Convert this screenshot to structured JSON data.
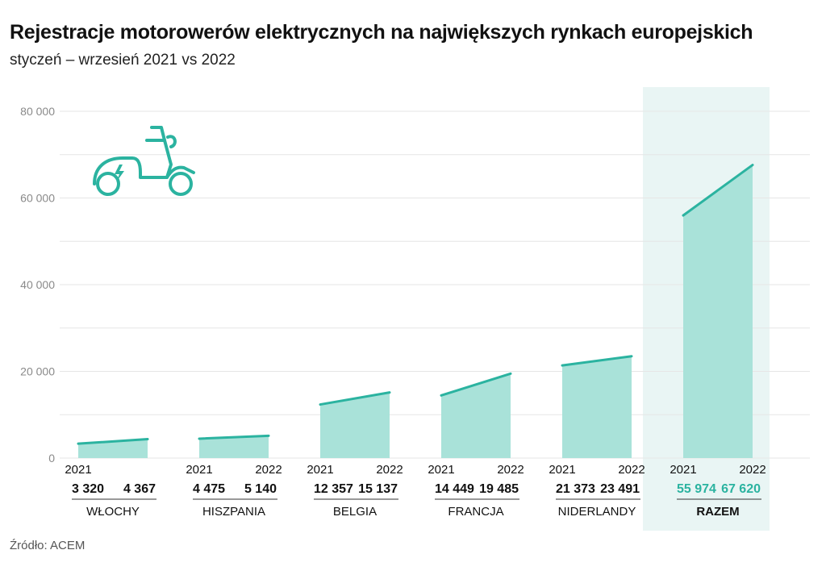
{
  "header": {
    "title": "Rejestracje motorowerów elektrycznych na największych rynkach europejskich",
    "subtitle": "styczeń – wrzesień 2021 vs 2022"
  },
  "footer": {
    "source": "Źródło: ACEM"
  },
  "colors": {
    "fill": "#a9e2d9",
    "line": "#2bb3a0",
    "highlight_bg": "#e9f5f4",
    "grid": "#e6e6e6",
    "highlight_text": "#2bb3a0"
  },
  "icon": {
    "name": "electric-scooter-icon"
  },
  "chart_data": {
    "type": "area",
    "title": "Rejestracje motorowerów elektrycznych na największych rynkach europejskich",
    "subtitle": "styczeń – wrzesień 2021 vs 2022",
    "ylim": [
      0,
      80000
    ],
    "yticks": [
      0,
      20000,
      40000,
      60000,
      80000
    ],
    "ytick_labels": [
      "0",
      "20 000",
      "40 000",
      "60 000",
      "80 000"
    ],
    "grid": true,
    "years": [
      "2021",
      "2022"
    ],
    "groups": [
      {
        "name": "WŁOCHY",
        "values": [
          3320,
          4367
        ],
        "labels": [
          "3 320",
          "4 367"
        ],
        "year_labels": [
          "2021",
          ""
        ],
        "highlight": false
      },
      {
        "name": "HISZPANIA",
        "values": [
          4475,
          5140
        ],
        "labels": [
          "4 475",
          "5 140"
        ],
        "year_labels": [
          "2021",
          "2022"
        ],
        "highlight": false
      },
      {
        "name": "BELGIA",
        "values": [
          12357,
          15137
        ],
        "labels": [
          "12 357",
          "15 137"
        ],
        "year_labels": [
          "2021",
          "2022"
        ],
        "highlight": false
      },
      {
        "name": "FRANCJA",
        "values": [
          14449,
          19485
        ],
        "labels": [
          "14 449",
          "19 485"
        ],
        "year_labels": [
          "2021",
          "2022"
        ],
        "highlight": false
      },
      {
        "name": "NIDERLANDY",
        "values": [
          21373,
          23491
        ],
        "labels": [
          "21 373",
          "23 491"
        ],
        "year_labels": [
          "2021",
          "2022"
        ],
        "highlight": false
      },
      {
        "name": "RAZEM",
        "values": [
          55974,
          67620
        ],
        "labels": [
          "55 974",
          "67 620"
        ],
        "year_labels": [
          "2021",
          "2022"
        ],
        "highlight": true
      }
    ]
  }
}
